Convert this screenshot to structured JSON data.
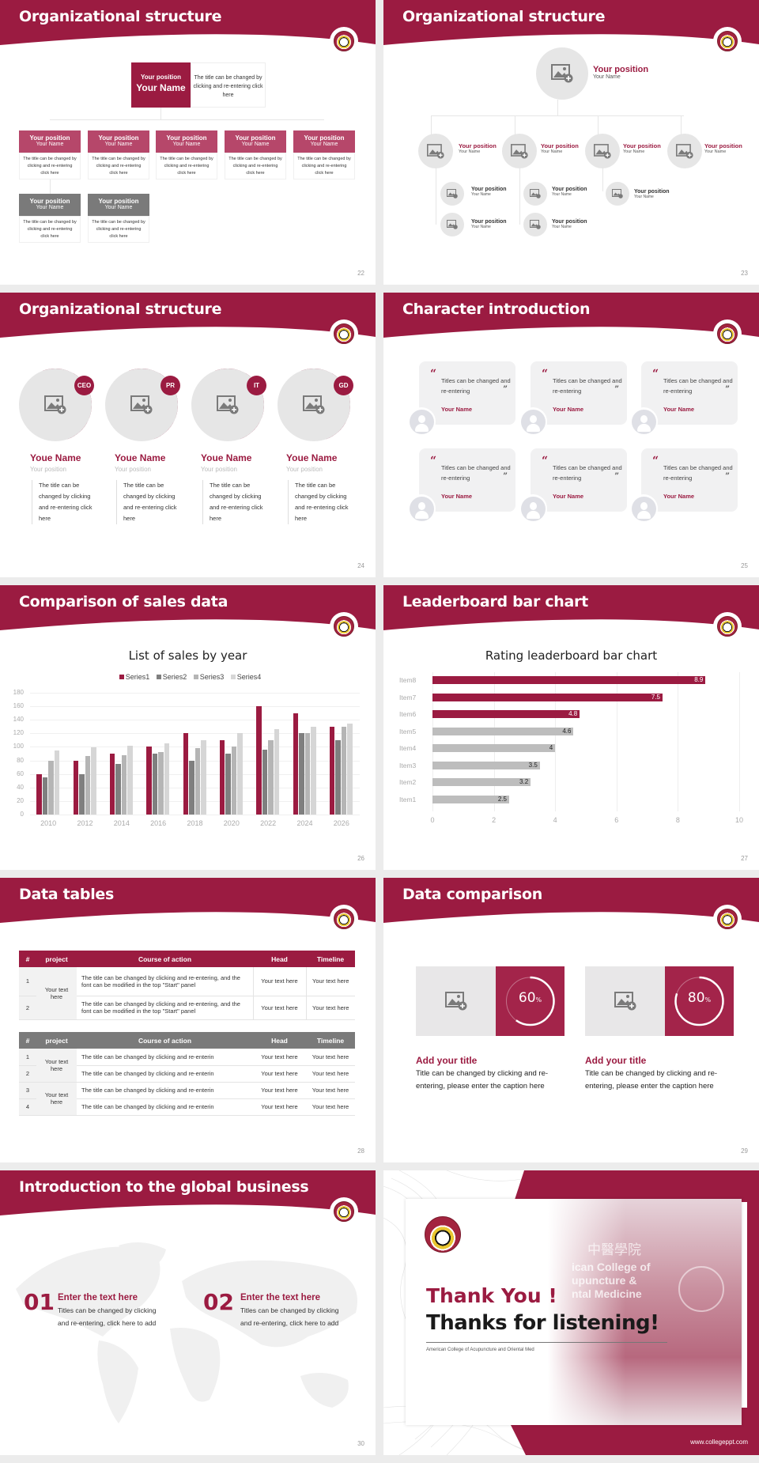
{
  "colors": {
    "accent": "#9b1b41",
    "accent_light": "#b6476a",
    "gray_dark": "#7a7a7a",
    "gray_mid": "#b5b5b5",
    "gray_light": "#d6d6d6",
    "placeholder": "#e6e6e6"
  },
  "slides": {
    "s22": {
      "title": "Organizational structure",
      "page": "22",
      "top": {
        "position": "Your position",
        "name": "Your Name",
        "desc": "The title can be changed by clicking and re-entering click here"
      },
      "cards": [
        {
          "position": "Your position",
          "name": "Your Name",
          "desc": "The title can be changed by clicking and re-entering click here",
          "tone": "accent"
        },
        {
          "position": "Your position",
          "name": "Your Name",
          "desc": "The title can be changed by clicking and re-entering click here",
          "tone": "accent"
        },
        {
          "position": "Your position",
          "name": "Your Name",
          "desc": "The title can be changed by clicking and re-entering click here",
          "tone": "accent"
        },
        {
          "position": "Your position",
          "name": "Your Name",
          "desc": "The title can be changed by clicking and re-entering click here",
          "tone": "accent"
        },
        {
          "position": "Your position",
          "name": "Your Name",
          "desc": "The title can be changed by clicking and re-entering click here",
          "tone": "accent"
        },
        {
          "position": "Your position",
          "name": "Your Name",
          "desc": "The title can be changed by clicking and re-entering click here",
          "tone": "gray"
        },
        {
          "position": "Your position",
          "name": "Your Name",
          "desc": "The title can be changed by clicking and re-entering click here",
          "tone": "gray"
        }
      ]
    },
    "s23": {
      "title": "Organizational structure",
      "page": "23",
      "top": {
        "position": "Your position",
        "name": "Your Name"
      },
      "level2": [
        {
          "position": "Your position",
          "name": "Your Name"
        },
        {
          "position": "Your position",
          "name": "Your Name"
        },
        {
          "position": "Your position",
          "name": "Your Name"
        },
        {
          "position": "Your position",
          "name": "Your Name"
        }
      ],
      "level3": [
        {
          "position": "Your position",
          "name": "Your Name"
        },
        {
          "position": "Your position",
          "name": "Your Name"
        },
        {
          "position": "Your position",
          "name": "Your Name"
        },
        {
          "position": "Your position",
          "name": "Your Name"
        },
        {
          "position": "Your position",
          "name": "Your Name"
        }
      ]
    },
    "s24": {
      "title": "Organizational structure",
      "page": "24",
      "people": [
        {
          "badge": "CEO",
          "name": "Youe Name",
          "position": "Your position",
          "desc": "The title can be changed by clicking and re-entering click here"
        },
        {
          "badge": "PR",
          "name": "Youe Name",
          "position": "Your position",
          "desc": "The title can be changed by clicking and re-entering click here"
        },
        {
          "badge": "IT",
          "name": "Youe Name",
          "position": "Your position",
          "desc": "The title can be changed by clicking and re-entering click here"
        },
        {
          "badge": "GD",
          "name": "Youe Name",
          "position": "Your position",
          "desc": "The title can be changed by clicking and re-entering click here"
        }
      ]
    },
    "s25": {
      "title": "Character introduction",
      "page": "25",
      "quotes": [
        {
          "text": "Titles can be changed and re-entering",
          "name": "Your Name"
        },
        {
          "text": "Titles can be changed and re-entering",
          "name": "Your Name"
        },
        {
          "text": "Titles can be changed and re-entering",
          "name": "Your Name"
        },
        {
          "text": "Titles can be changed and re-entering",
          "name": "Your Name"
        },
        {
          "text": "Titles can be changed and re-entering",
          "name": "Your Name"
        },
        {
          "text": "Titles can be changed and re-entering",
          "name": "Your Name"
        }
      ],
      "open_quote": "“",
      "close_quote": "”"
    },
    "s26": {
      "title": "Comparison of sales data",
      "page": "26"
    },
    "s27": {
      "title": "Leaderboard bar chart",
      "page": "27"
    },
    "s28": {
      "title": "Data tables",
      "page": "28",
      "headers": [
        "#",
        "project",
        "Course of action",
        "Head",
        "Timeline"
      ],
      "table1": {
        "rows": [
          {
            "idx": "1",
            "action": "The title can be changed by clicking and re-entering, and the font can be modified in the top \"Start\" panel",
            "head": "Your text here",
            "timeline": "Your text here"
          },
          {
            "idx": "2",
            "action": "The title can be changed by clicking and re-entering, and the font can be modified in the top \"Start\" panel",
            "head": "Your text here",
            "timeline": "Your text here"
          }
        ],
        "project": "Your text here"
      },
      "table2": {
        "rows": [
          {
            "idx": "1",
            "action": "The title can be changed by clicking and re-enterin",
            "head": "Your text here",
            "timeline": "Your text here"
          },
          {
            "idx": "2",
            "action": "The title can be changed by clicking and re-enterin",
            "head": "Your text here",
            "timeline": "Your text here"
          },
          {
            "idx": "3",
            "action": "The title can be changed by clicking and re-enterin",
            "head": "Your text here",
            "timeline": "Your text here"
          },
          {
            "idx": "4",
            "action": "The title can be changed by clicking and re-enterin",
            "head": "Your text here",
            "timeline": "Your text here"
          }
        ],
        "projects": [
          "Your text here",
          "Your text here"
        ]
      }
    },
    "s29": {
      "title": "Data comparison",
      "page": "29",
      "items": [
        {
          "value": "60",
          "unit": "%",
          "percent": 60,
          "title": "Add your title",
          "desc": "Title can be changed by clicking and re-entering, please enter the caption here"
        },
        {
          "value": "80",
          "unit": "%",
          "percent": 80,
          "title": "Add your title",
          "desc": "Title can be changed by clicking and re-entering, please enter the caption here"
        }
      ]
    },
    "s30": {
      "title": "Introduction to the global business",
      "page": "30",
      "items": [
        {
          "num": "01",
          "title": "Enter the text here",
          "desc": "Titles can be changed by clicking and re-entering, click here to add"
        },
        {
          "num": "02",
          "title": "Enter the text here",
          "desc": "Titles can be changed by clicking and re-entering, click here to add"
        }
      ]
    },
    "s31": {
      "thank_you": "Thank You !",
      "thanks": "Thanks for listening!",
      "college": "American College of Acupuncture and Oriental Med",
      "url": "www.collegeppt.com",
      "sign_text": [
        "中醫學院",
        "ican College of",
        "upuncture &",
        "ntal Medicine"
      ]
    }
  },
  "chart_data": [
    {
      "type": "bar",
      "title": "List of sales by year",
      "categories": [
        "2010",
        "2012",
        "2014",
        "2016",
        "2018",
        "2020",
        "2022",
        "2024",
        "2026"
      ],
      "series": [
        {
          "name": "Series1",
          "color": "#9b1b41",
          "values": [
            60,
            80,
            90,
            100,
            120,
            110,
            160,
            150,
            130
          ]
        },
        {
          "name": "Series2",
          "color": "#7f7f7f",
          "values": [
            55,
            60,
            75,
            90,
            80,
            90,
            96,
            120,
            110
          ]
        },
        {
          "name": "Series3",
          "color": "#b5b5b5",
          "values": [
            80,
            86,
            88,
            92,
            98,
            100,
            110,
            120,
            130
          ]
        },
        {
          "name": "Series4",
          "color": "#d6d6d6",
          "values": [
            95,
            99,
            102,
            105,
            110,
            120,
            126,
            130,
            135
          ]
        }
      ],
      "yticks": [
        "0",
        "20",
        "40",
        "60",
        "80",
        "100",
        "120",
        "140",
        "160",
        "180"
      ],
      "ylim": [
        0,
        180
      ],
      "xlabel": "",
      "ylabel": "",
      "legend_position": "top",
      "grid": true
    },
    {
      "type": "bar",
      "orientation": "horizontal",
      "title": "Rating leaderboard bar chart",
      "categories": [
        "Item8",
        "Item7",
        "Item6",
        "Item5",
        "Item4",
        "Item3",
        "Item2",
        "Item1"
      ],
      "values": [
        8.9,
        7.5,
        4.8,
        4.6,
        4,
        3.5,
        3.2,
        2.5
      ],
      "labels": [
        "8.9",
        "7.5",
        "4.8",
        "4.6",
        "4",
        "3.5",
        "3.2",
        "2.5"
      ],
      "highlight": [
        true,
        true,
        true,
        false,
        false,
        false,
        false,
        false
      ],
      "xticks": [
        "0",
        "2",
        "4",
        "6",
        "8",
        "10"
      ],
      "xlim": [
        0,
        10
      ],
      "grid": true
    }
  ]
}
